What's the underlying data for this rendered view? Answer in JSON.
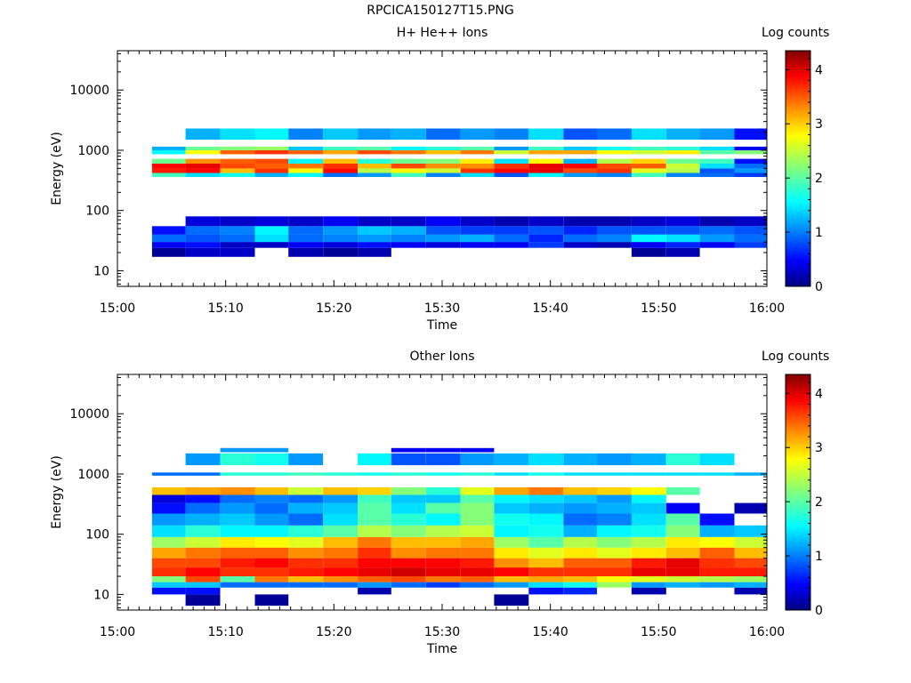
{
  "title": "RPCICA150127T15.PNG",
  "colors": {
    "colormap": [
      "#00007f",
      "#0000ff",
      "#007fff",
      "#00ffff",
      "#7fff7f",
      "#ffff00",
      "#ff7f00",
      "#ff0000",
      "#7f0000"
    ],
    "background": "#ffffff"
  },
  "colorbar": {
    "label": "Log counts",
    "ticks": [
      "0",
      "1",
      "2",
      "3",
      "4"
    ],
    "range": [
      0,
      4.35
    ]
  },
  "chart_data": [
    {
      "type": "heatmap",
      "title": "H+ He++ Ions",
      "xlabel": "Time",
      "ylabel": "Energy (eV)",
      "x_ticks": [
        "15:00",
        "15:10",
        "15:20",
        "15:30",
        "15:40",
        "15:50",
        "16:00"
      ],
      "y_ticks": [
        "10",
        "100",
        "1000",
        "10000"
      ],
      "x_range_min": [
        0,
        60
      ],
      "y_scale": "log",
      "y_range_eV": [
        5.5,
        45000
      ],
      "time_columns_min": [
        [
          3.2,
          6.3
        ],
        [
          6.3,
          9.5
        ],
        [
          9.5,
          12.7
        ],
        [
          12.7,
          15.8
        ],
        [
          15.8,
          19.0
        ],
        [
          19.0,
          22.2
        ],
        [
          22.2,
          25.3
        ],
        [
          25.3,
          28.5
        ],
        [
          28.5,
          31.7
        ],
        [
          31.7,
          34.8
        ],
        [
          34.8,
          38.0
        ],
        [
          38.0,
          41.2
        ],
        [
          41.2,
          44.3
        ],
        [
          44.3,
          47.5
        ],
        [
          47.5,
          50.7
        ],
        [
          50.7,
          53.8
        ],
        [
          53.8,
          57.0
        ],
        [
          57.0,
          60.0
        ]
      ],
      "bands": [
        {
          "energy_eV": [
            17,
            24
          ],
          "log_counts": [
            0.1,
            0.3,
            0.3,
            null,
            0.2,
            0.1,
            0.2,
            null,
            null,
            null,
            null,
            null,
            null,
            null,
            0.1,
            0.2,
            null,
            null
          ]
        },
        {
          "energy_eV": [
            24,
            30
          ],
          "log_counts": [
            0.5,
            0.6,
            0.3,
            0.3,
            0.5,
            0.4,
            0.6,
            0.5,
            0.4,
            0.5,
            0.5,
            0.8,
            0.3,
            0.2,
            0.5,
            0.7,
            0.5,
            0.8
          ]
        },
        {
          "energy_eV": [
            30,
            40
          ],
          "log_counts": [
            1.0,
            0.9,
            1.0,
            1.5,
            1.0,
            1.1,
            1.2,
            1.1,
            1.2,
            1.3,
            1.0,
            0.7,
            1.0,
            1.1,
            1.6,
            1.5,
            1.2,
            1.0
          ]
        },
        {
          "energy_eV": [
            40,
            55
          ],
          "log_counts": [
            0.6,
            1.0,
            1.1,
            1.6,
            1.0,
            1.2,
            1.4,
            1.3,
            0.9,
            0.8,
            0.8,
            0.9,
            0.7,
            0.9,
            0.9,
            0.9,
            1.0,
            0.9
          ]
        },
        {
          "energy_eV": [
            55,
            80
          ],
          "log_counts": [
            null,
            0.4,
            0.3,
            0.4,
            0.3,
            0.5,
            0.3,
            0.3,
            0.5,
            0.3,
            0.2,
            0.3,
            0.2,
            0.2,
            0.3,
            0.4,
            0.2,
            0.3
          ]
        },
        {
          "energy_eV": [
            360,
            420
          ],
          "log_counts": [
            1.9,
            1.5,
            1.7,
            1.3,
            1.6,
            1.0,
            1.2,
            1.9,
            1.1,
            1.5,
            0.9,
            1.6,
            1.2,
            1.1,
            1.9,
            1.1,
            1.0,
            0.8
          ]
        },
        {
          "energy_eV": [
            420,
            500
          ],
          "log_counts": [
            3.7,
            3.8,
            3.0,
            3.6,
            2.7,
            3.8,
            2.4,
            2.7,
            2.5,
            3.6,
            3.8,
            3.9,
            3.5,
            3.6,
            2.6,
            2.4,
            0.9,
            1.2
          ]
        },
        {
          "energy_eV": [
            500,
            600
          ],
          "log_counts": [
            3.8,
            3.9,
            3.5,
            3.4,
            3.3,
            3.6,
            3.0,
            3.5,
            3.2,
            3.2,
            3.6,
            3.9,
            3.8,
            3.5,
            3.4,
            2.5,
            1.5,
            1.0
          ]
        },
        {
          "energy_eV": [
            600,
            720
          ],
          "log_counts": [
            2.1,
            3.2,
            3.4,
            3.5,
            1.6,
            3.0,
            1.8,
            2.1,
            2.2,
            2.8,
            1.5,
            2.7,
            1.3,
            2.4,
            2.9,
            2.1,
            1.9,
            0.6
          ]
        },
        {
          "energy_eV": [
            860,
            1000
          ],
          "log_counts": [
            1.6,
            2.7,
            3.4,
            3.6,
            3.4,
            3.1,
            3.5,
            3.3,
            3.0,
            3.3,
            2.5,
            3.1,
            3.1,
            2.7,
            2.5,
            2.8,
            2.0,
            2.2
          ]
        },
        {
          "energy_eV": [
            1000,
            1150
          ],
          "log_counts": [
            1.3,
            2.1,
            2.2,
            2.3,
            1.4,
            1.9,
            2.0,
            1.6,
            1.8,
            2.0,
            1.2,
            1.9,
            1.4,
            1.7,
            1.9,
            1.8,
            1.5,
            0.5
          ]
        },
        {
          "energy_eV": [
            1500,
            2300
          ],
          "log_counts": [
            null,
            1.3,
            1.5,
            1.6,
            1.1,
            1.4,
            1.2,
            1.3,
            1.0,
            1.2,
            1.1,
            1.5,
            0.9,
            1.0,
            1.5,
            1.3,
            1.2,
            0.6
          ]
        }
      ]
    },
    {
      "type": "heatmap",
      "title": "Other Ions",
      "xlabel": "Time",
      "ylabel": "Energy (eV)",
      "x_ticks": [
        "15:00",
        "15:10",
        "15:20",
        "15:30",
        "15:40",
        "15:50",
        "16:00"
      ],
      "y_ticks": [
        "10",
        "100",
        "1000",
        "10000"
      ],
      "x_range_min": [
        0,
        60
      ],
      "y_scale": "log",
      "y_range_eV": [
        5.5,
        45000
      ],
      "bands": [
        {
          "energy_eV": [
            6.5,
            10
          ],
          "log_counts": [
            null,
            0.1,
            null,
            0.1,
            null,
            null,
            null,
            null,
            null,
            null,
            0.1,
            null,
            null,
            null,
            null,
            null,
            null,
            null
          ]
        },
        {
          "energy_eV": [
            10,
            13
          ],
          "log_counts": [
            0.6,
            0.6,
            null,
            null,
            null,
            null,
            0.2,
            null,
            null,
            null,
            null,
            0.6,
            0.7,
            null,
            0.2,
            null,
            null,
            0.2
          ]
        },
        {
          "energy_eV": [
            13,
            16
          ],
          "log_counts": [
            1.4,
            1.4,
            1.0,
            1.0,
            1.0,
            1.0,
            1.2,
            1.0,
            0.8,
            1.0,
            1.2,
            1.5,
            1.7,
            2.3,
            1.2,
            1.3,
            1.2,
            1.3
          ]
        },
        {
          "energy_eV": [
            16,
            20
          ],
          "log_counts": [
            2.2,
            3.5,
            2.0,
            3.3,
            3.0,
            3.2,
            3.4,
            3.5,
            3.3,
            3.4,
            3.0,
            3.1,
            3.0,
            2.7,
            2.6,
            2.5,
            2.4,
            2.3
          ]
        },
        {
          "energy_eV": [
            20,
            28
          ],
          "log_counts": [
            3.6,
            3.8,
            3.6,
            3.6,
            3.7,
            3.8,
            3.9,
            4.0,
            3.9,
            3.9,
            3.8,
            3.6,
            3.6,
            3.6,
            3.9,
            3.9,
            3.7,
            3.7
          ]
        },
        {
          "energy_eV": [
            28,
            40
          ],
          "log_counts": [
            3.5,
            3.5,
            3.7,
            3.8,
            3.6,
            3.6,
            3.8,
            3.8,
            3.8,
            3.7,
            3.2,
            3.0,
            3.4,
            3.4,
            3.7,
            3.9,
            3.6,
            3.5
          ]
        },
        {
          "energy_eV": [
            40,
            60
          ],
          "log_counts": [
            3.1,
            3.3,
            3.4,
            3.4,
            3.2,
            3.3,
            3.6,
            3.2,
            3.3,
            3.3,
            2.8,
            2.6,
            2.8,
            2.6,
            2.8,
            3.0,
            3.4,
            3.0
          ]
        },
        {
          "energy_eV": [
            60,
            90
          ],
          "log_counts": [
            2.3,
            2.5,
            2.8,
            2.7,
            2.6,
            3.0,
            3.3,
            3.0,
            3.0,
            3.1,
            2.3,
            2.0,
            2.4,
            2.2,
            2.4,
            2.8,
            2.7,
            2.5
          ]
        },
        {
          "energy_eV": [
            90,
            140
          ],
          "log_counts": [
            1.5,
            1.8,
            1.6,
            1.6,
            1.8,
            2.0,
            2.4,
            2.2,
            2.4,
            2.5,
            1.6,
            1.7,
            1.3,
            1.6,
            1.7,
            2.2,
            1.3,
            1.4
          ]
        },
        {
          "energy_eV": [
            140,
            220
          ],
          "log_counts": [
            1.2,
            1.3,
            1.4,
            1.2,
            1.0,
            1.5,
            2.0,
            1.8,
            1.6,
            2.2,
            1.7,
            1.6,
            1.0,
            1.1,
            1.5,
            2.0,
            0.6,
            null
          ]
        },
        {
          "energy_eV": [
            220,
            330
          ],
          "log_counts": [
            0.6,
            1.0,
            1.2,
            1.0,
            1.3,
            1.4,
            2.0,
            1.5,
            2.0,
            2.2,
            1.4,
            1.3,
            1.2,
            1.3,
            1.4,
            0.5,
            null,
            0.2
          ]
        },
        {
          "energy_eV": [
            330,
            450
          ],
          "log_counts": [
            0.4,
            0.6,
            1.0,
            1.1,
            1.0,
            1.2,
            1.9,
            1.4,
            1.4,
            2.0,
            1.6,
            1.5,
            1.4,
            1.2,
            1.6,
            null,
            null,
            null
          ]
        },
        {
          "energy_eV": [
            450,
            600
          ],
          "log_counts": [
            3.0,
            3.1,
            3.2,
            3.0,
            2.5,
            3.0,
            2.9,
            2.2,
            1.8,
            2.6,
            3.1,
            3.3,
            3.0,
            2.9,
            2.7,
            2.0,
            null,
            null
          ]
        },
        {
          "energy_eV": [
            940,
            1060
          ],
          "log_counts": [
            1.0,
            1.0,
            1.8,
            1.8,
            1.9,
            1.8,
            1.7,
            1.8,
            1.7,
            1.8,
            1.5,
            1.7,
            1.5,
            1.5,
            1.5,
            1.5,
            1.5,
            1.3
          ]
        },
        {
          "energy_eV": [
            1400,
            2200
          ],
          "log_counts": [
            null,
            1.2,
            1.8,
            1.7,
            1.2,
            null,
            1.6,
            0.9,
            0.9,
            1.2,
            1.3,
            1.5,
            1.3,
            1.2,
            1.3,
            1.8,
            1.5,
            null
          ]
        },
        {
          "energy_eV": [
            2300,
            2700
          ],
          "log_counts": [
            null,
            null,
            1.2,
            1.2,
            null,
            null,
            null,
            0.5,
            0.5,
            0.5,
            null,
            null,
            null,
            null,
            null,
            null,
            null,
            null
          ]
        }
      ]
    }
  ]
}
